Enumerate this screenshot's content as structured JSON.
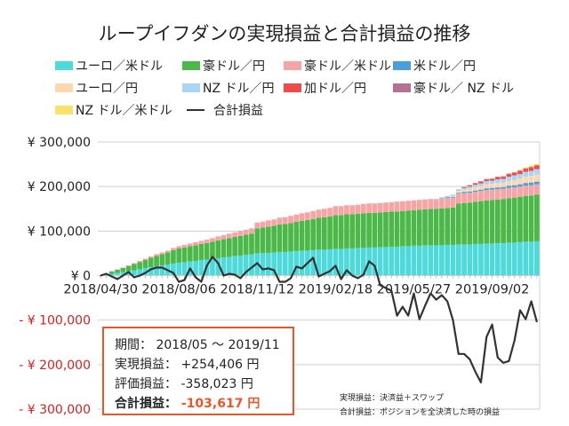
{
  "chart_data": {
    "type": "bar",
    "stacked": true,
    "title": "ループイフダンの実現損益と合計損益の推移",
    "ylim": [
      -300000,
      300000
    ],
    "grid": true,
    "legend_position": "top",
    "y_ticks": [
      {
        "value": 300000,
        "label": "¥ 300,000"
      },
      {
        "value": 200000,
        "label": "¥ 200,000"
      },
      {
        "value": 100000,
        "label": "¥ 100,000"
      },
      {
        "value": 0,
        "label": "¥ 0"
      },
      {
        "value": -100000,
        "label": "- ¥ 100,000"
      },
      {
        "value": -200000,
        "label": "- ¥ 200,000"
      },
      {
        "value": -300000,
        "label": "- ¥ 300,000"
      }
    ],
    "x_tick_labels": [
      "2018/04/30",
      "2018/08/06",
      "2018/11/12",
      "2019/02/18",
      "2019/05/27",
      "2019/09/02"
    ],
    "categories": [
      "2018/04/30",
      "2018/05/07",
      "2018/05/14",
      "2018/05/21",
      "2018/05/28",
      "2018/06/04",
      "2018/06/11",
      "2018/06/18",
      "2018/06/25",
      "2018/07/02",
      "2018/07/09",
      "2018/07/16",
      "2018/07/23",
      "2018/07/30",
      "2018/08/06",
      "2018/08/13",
      "2018/08/20",
      "2018/08/27",
      "2018/09/03",
      "2018/09/10",
      "2018/09/17",
      "2018/09/24",
      "2018/10/01",
      "2018/10/08",
      "2018/10/15",
      "2018/10/22",
      "2018/10/29",
      "2018/11/05",
      "2018/11/12",
      "2018/11/19",
      "2018/11/26",
      "2018/12/03",
      "2018/12/10",
      "2018/12/17",
      "2018/12/24",
      "2018/12/31",
      "2019/01/07",
      "2019/01/14",
      "2019/01/21",
      "2019/01/28",
      "2019/02/04",
      "2019/02/11",
      "2019/02/18",
      "2019/02/25",
      "2019/03/04",
      "2019/03/11",
      "2019/03/18",
      "2019/03/25",
      "2019/04/01",
      "2019/04/08",
      "2019/04/15",
      "2019/04/22",
      "2019/04/29",
      "2019/05/06",
      "2019/05/13",
      "2019/05/20",
      "2019/05/27",
      "2019/06/03",
      "2019/06/10",
      "2019/06/17",
      "2019/06/24",
      "2019/07/01",
      "2019/07/08",
      "2019/07/15",
      "2019/07/22",
      "2019/07/29",
      "2019/08/05",
      "2019/08/12",
      "2019/08/19",
      "2019/08/26",
      "2019/09/02",
      "2019/09/09",
      "2019/09/16",
      "2019/09/23",
      "2019/09/30",
      "2019/10/07",
      "2019/10/14",
      "2019/10/21",
      "2019/10/28"
    ],
    "series": [
      {
        "name": "ユーロ／米ドル",
        "color": "#4fd9da",
        "values": [
          0,
          2000,
          4000,
          6000,
          8000,
          10000,
          12000,
          14000,
          17000,
          19000,
          21000,
          23000,
          25000,
          27000,
          29000,
          30000,
          32000,
          33000,
          35000,
          36000,
          38000,
          39000,
          41000,
          42000,
          44000,
          45000,
          47000,
          48000,
          50000,
          51000,
          51000,
          52000,
          53000,
          53000,
          54000,
          55000,
          56000,
          56000,
          57000,
          58000,
          58000,
          59000,
          60000,
          60000,
          61000,
          61000,
          62000,
          62000,
          63000,
          63000,
          64000,
          64000,
          65000,
          65000,
          66000,
          66000,
          67000,
          67000,
          68000,
          68000,
          68000,
          68000,
          69000,
          69000,
          70000,
          70000,
          70000,
          71000,
          71000,
          72000,
          72000,
          73000,
          73000,
          74000,
          74000,
          75000,
          76000,
          76000,
          77000
        ]
      },
      {
        "name": "豪ドル／円",
        "color": "#4db84a",
        "values": [
          0,
          2000,
          5000,
          7000,
          9000,
          11000,
          14000,
          16000,
          18000,
          21000,
          23000,
          25000,
          27000,
          30000,
          32000,
          33000,
          34000,
          35000,
          36000,
          37000,
          38000,
          40000,
          41000,
          42000,
          43000,
          44000,
          45000,
          46000,
          56000,
          57000,
          59000,
          60000,
          62000,
          63000,
          64000,
          66000,
          67000,
          69000,
          70000,
          72000,
          73000,
          74000,
          76000,
          76000,
          77000,
          77000,
          77000,
          78000,
          78000,
          78000,
          78000,
          79000,
          79000,
          79000,
          79000,
          80000,
          80000,
          81000,
          81000,
          82000,
          82000,
          83000,
          83000,
          84000,
          92000,
          93000,
          94000,
          95000,
          96000,
          97000,
          98000,
          98000,
          99000,
          100000,
          101000,
          102000,
          103000,
          104000,
          105000
        ]
      },
      {
        "name": "豪ドル／米ドル",
        "color": "#f7a4a4",
        "values": [
          0,
          0,
          1000,
          1000,
          1000,
          2000,
          2000,
          3000,
          3000,
          3000,
          4000,
          4000,
          4000,
          5000,
          5000,
          6000,
          6000,
          7000,
          7000,
          8000,
          8000,
          9000,
          9000,
          10000,
          10000,
          11000,
          11000,
          12000,
          13000,
          13000,
          14000,
          14000,
          15000,
          15000,
          16000,
          16000,
          17000,
          17000,
          18000,
          18000,
          19000,
          19000,
          20000,
          20000,
          20000,
          20000,
          20000,
          21000,
          21000,
          21000,
          21000,
          21000,
          21000,
          22000,
          22000,
          22000,
          22000,
          22000,
          22000,
          22000,
          22000,
          22000,
          22000,
          22000,
          22000,
          22000,
          22000,
          22000,
          23000,
          23000,
          23000,
          23000,
          23000,
          23000,
          23000,
          23000,
          23000,
          23000,
          23000
        ]
      },
      {
        "name": "米ドル／円",
        "color": "#4a9edb",
        "values": [
          0,
          0,
          0,
          0,
          0,
          0,
          0,
          0,
          0,
          0,
          0,
          0,
          0,
          0,
          0,
          0,
          0,
          0,
          0,
          0,
          0,
          0,
          0,
          0,
          0,
          0,
          0,
          0,
          0,
          0,
          0,
          0,
          0,
          0,
          0,
          0,
          0,
          0,
          0,
          0,
          0,
          0,
          0,
          0,
          0,
          0,
          0,
          0,
          0,
          0,
          0,
          0,
          0,
          0,
          0,
          0,
          0,
          0,
          0,
          0,
          0,
          1000,
          2000,
          2000,
          2000,
          3000,
          3000,
          3000,
          3000,
          4000,
          4000,
          4000,
          4000,
          5000,
          5000,
          5000,
          6000,
          6000,
          6000
        ]
      },
      {
        "name": "ユーロ／円",
        "color": "#fdd6b2",
        "values": [
          0,
          0,
          0,
          0,
          0,
          0,
          0,
          0,
          0,
          0,
          0,
          0,
          0,
          0,
          0,
          0,
          0,
          0,
          0,
          0,
          0,
          0,
          0,
          0,
          0,
          0,
          0,
          0,
          0,
          0,
          0,
          0,
          0,
          0,
          0,
          0,
          0,
          0,
          0,
          0,
          0,
          0,
          0,
          0,
          0,
          0,
          0,
          0,
          0,
          0,
          0,
          0,
          0,
          0,
          0,
          0,
          0,
          0,
          0,
          0,
          0,
          0,
          0,
          2000,
          4000,
          5000,
          6000,
          7000,
          8000,
          9000,
          9000,
          10000,
          10000,
          11000,
          12000,
          13000,
          14000,
          15000,
          16000
        ]
      },
      {
        "name": "NZ ドル／円",
        "color": "#a9d5f6",
        "values": [
          0,
          0,
          0,
          0,
          0,
          0,
          0,
          0,
          0,
          0,
          0,
          0,
          0,
          0,
          0,
          0,
          0,
          0,
          0,
          0,
          0,
          0,
          0,
          0,
          0,
          0,
          0,
          0,
          0,
          0,
          0,
          0,
          0,
          0,
          0,
          0,
          0,
          0,
          0,
          0,
          0,
          0,
          0,
          0,
          0,
          0,
          0,
          0,
          0,
          0,
          0,
          0,
          0,
          0,
          0,
          0,
          0,
          0,
          0,
          0,
          0,
          2000,
          3000,
          3000,
          4000,
          4000,
          5000,
          6000,
          6000,
          7000,
          7000,
          8000,
          8000,
          9000,
          10000,
          10000,
          11000,
          11000,
          12000
        ]
      },
      {
        "name": "加ドル／円",
        "color": "#ee4b4e",
        "values": [
          0,
          0,
          0,
          0,
          0,
          0,
          0,
          0,
          0,
          0,
          0,
          0,
          0,
          0,
          0,
          0,
          0,
          0,
          0,
          0,
          0,
          0,
          0,
          0,
          0,
          0,
          0,
          0,
          0,
          0,
          0,
          0,
          0,
          0,
          0,
          0,
          0,
          0,
          0,
          0,
          0,
          0,
          0,
          0,
          0,
          0,
          0,
          0,
          0,
          0,
          0,
          0,
          0,
          0,
          0,
          0,
          0,
          0,
          0,
          0,
          0,
          0,
          0,
          0,
          0,
          2000,
          3000,
          3000,
          4000,
          4000,
          4000,
          5000,
          5000,
          6000,
          6000,
          7000,
          7000,
          8000,
          8000
        ]
      },
      {
        "name": "豪ドル／ NZ ドル",
        "color": "#b3728f",
        "values": [
          0,
          0,
          0,
          0,
          0,
          0,
          0,
          0,
          0,
          0,
          0,
          0,
          0,
          0,
          0,
          0,
          0,
          0,
          0,
          0,
          0,
          0,
          0,
          0,
          0,
          0,
          0,
          0,
          0,
          0,
          0,
          0,
          0,
          0,
          0,
          0,
          0,
          0,
          0,
          0,
          0,
          0,
          0,
          0,
          0,
          0,
          0,
          0,
          0,
          0,
          0,
          0,
          0,
          0,
          0,
          0,
          0,
          0,
          0,
          0,
          0,
          0,
          0,
          0,
          0,
          0,
          0,
          1000,
          1000,
          1000,
          1000,
          1000,
          1000,
          1000,
          1000,
          1000,
          1000,
          1000,
          1000
        ]
      },
      {
        "name": "NZ ドル／米ドル",
        "color": "#fbe06b",
        "values": [
          0,
          0,
          0,
          0,
          0,
          0,
          0,
          0,
          0,
          0,
          0,
          0,
          0,
          0,
          0,
          0,
          0,
          0,
          0,
          0,
          0,
          0,
          0,
          0,
          0,
          0,
          0,
          0,
          0,
          0,
          0,
          0,
          0,
          0,
          0,
          0,
          0,
          0,
          0,
          0,
          0,
          0,
          0,
          0,
          0,
          0,
          0,
          0,
          0,
          0,
          0,
          0,
          0,
          0,
          0,
          0,
          0,
          0,
          0,
          0,
          0,
          0,
          0,
          0,
          0,
          0,
          0,
          0,
          0,
          0,
          0,
          0,
          0,
          1000,
          1000,
          2000,
          2000,
          3000,
          3000
        ]
      }
    ],
    "line_series": {
      "name": "合計損益",
      "type": "line",
      "color": "#333333",
      "values": [
        0,
        4000,
        -2000,
        -8000,
        0,
        8000,
        -4000,
        0,
        6000,
        14000,
        18000,
        18000,
        12000,
        6000,
        -14000,
        -10000,
        16000,
        -4000,
        -14000,
        22000,
        42000,
        28000,
        0,
        4000,
        2000,
        -6000,
        8000,
        18000,
        28000,
        14000,
        16000,
        12000,
        -14000,
        -14000,
        -6000,
        20000,
        16000,
        28000,
        40000,
        -2000,
        4000,
        10000,
        22000,
        -8000,
        12000,
        0,
        -6000,
        2000,
        32000,
        22000,
        -22000,
        -28000,
        -34000,
        -90000,
        -70000,
        -90000,
        -40000,
        -98000,
        -68000,
        -40000,
        -54000,
        -44000,
        -58000,
        -100000,
        -176000,
        -176000,
        -188000,
        -216000,
        -240000,
        -138000,
        -110000,
        -184000,
        -196000,
        -192000,
        -146000,
        -78000,
        -98000,
        -58000,
        -104000
      ]
    }
  },
  "summary": {
    "period_label": "期間：",
    "period_value": "2018/05 ～ 2019/11",
    "realized_label": "実現損益：",
    "realized_value": "+254,406 円",
    "unrealized_label": "評価損益：",
    "unrealized_value": "-358,023 円",
    "total_label": "合計損益：",
    "total_value": "-103,617 円",
    "border_color": "#e8562a",
    "total_color": "#e8562a"
  },
  "notes": {
    "line1": "実現損益：決済益＋スワップ",
    "line2": "合計損益：ポジションを全決済した時の損益"
  }
}
